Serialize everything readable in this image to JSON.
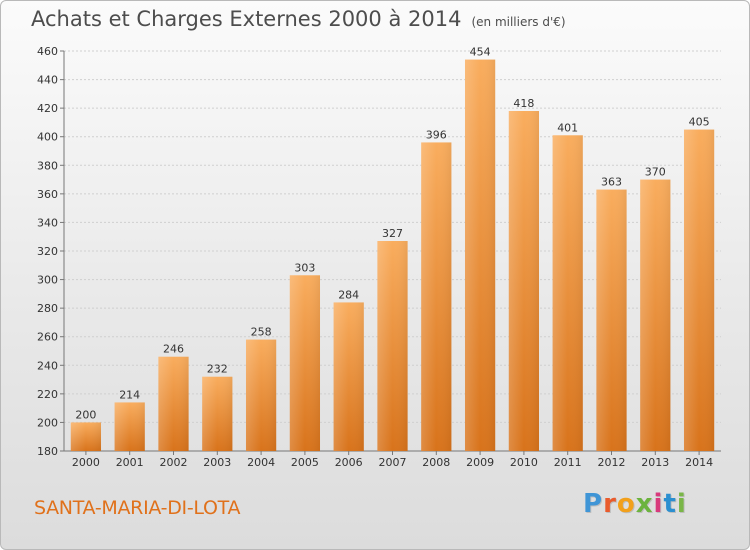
{
  "title": "Achats et Charges Externes 2000 à 2014",
  "subtitle": "(en milliers d'€)",
  "commune": "SANTA-MARIA-DI-LOTA",
  "logo": {
    "letters": [
      "P",
      "r",
      "o",
      "x",
      "i",
      "t",
      "i"
    ],
    "colors": [
      "#3f95d6",
      "#e95b2c",
      "#f2a01b",
      "#6cb33e",
      "#d83a7c",
      "#2b8fd0",
      "#7ab648"
    ]
  },
  "colors": {
    "bar": "#f2913a",
    "bar_light": "#f9b063",
    "bar_dark": "#d5741d",
    "title": "#4d4d4d",
    "commune": "#e0711b"
  },
  "chart_data": {
    "type": "bar",
    "title": "Achats et Charges Externes 2000 à 2014",
    "subtitle": "(en milliers d'€)",
    "categories": [
      "2000",
      "2001",
      "2002",
      "2003",
      "2004",
      "2005",
      "2006",
      "2007",
      "2008",
      "2009",
      "2010",
      "2011",
      "2012",
      "2013",
      "2014"
    ],
    "values": [
      200,
      214,
      246,
      232,
      258,
      303,
      284,
      327,
      396,
      454,
      418,
      401,
      363,
      370,
      405
    ],
    "ylim": [
      180,
      460
    ],
    "yticks": [
      180,
      200,
      220,
      240,
      260,
      280,
      300,
      320,
      340,
      360,
      380,
      400,
      420,
      440,
      460
    ],
    "grid": true,
    "xlabel": "",
    "ylabel": ""
  }
}
